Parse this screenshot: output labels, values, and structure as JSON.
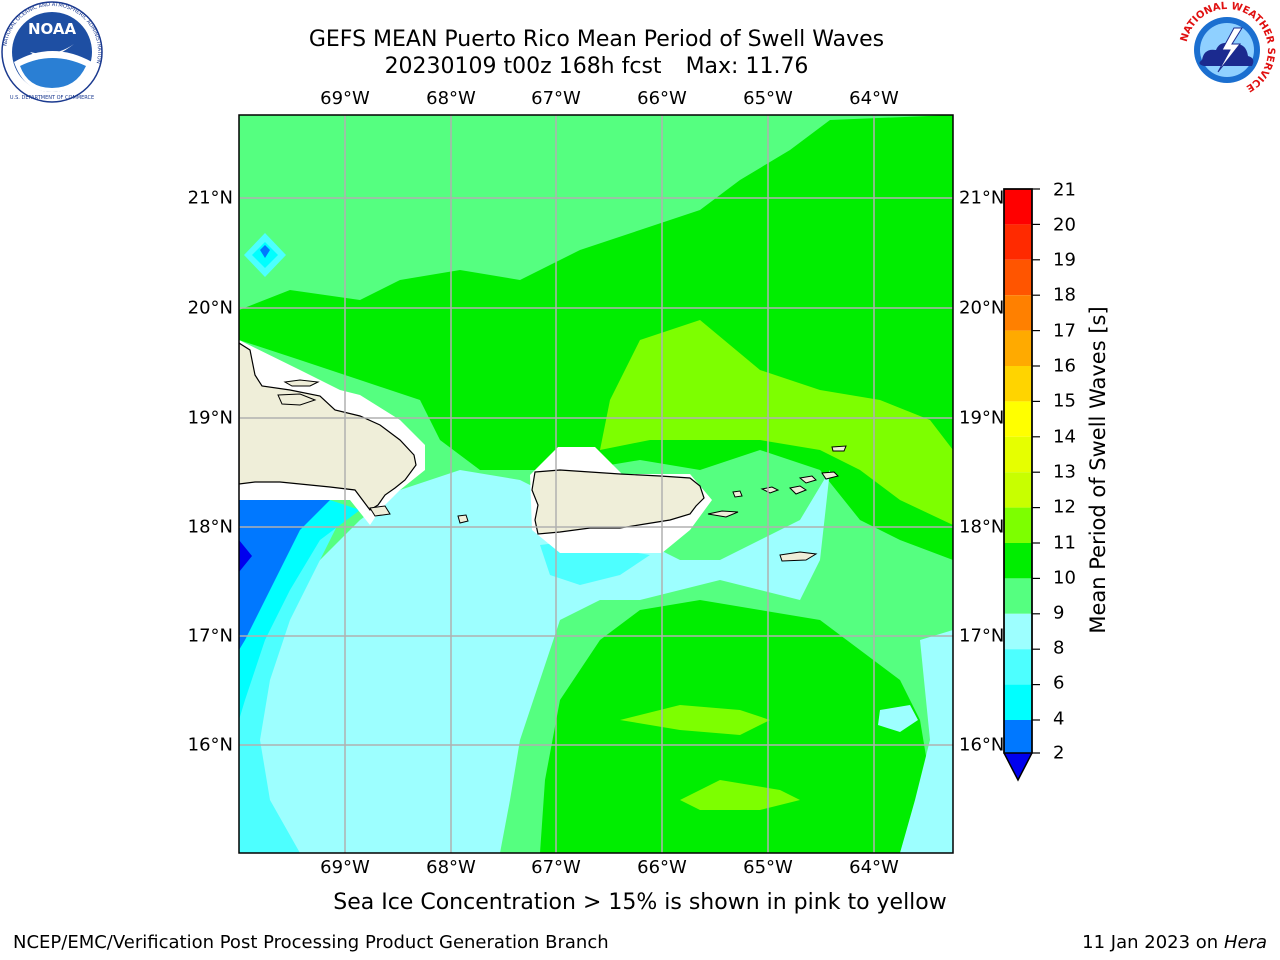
{
  "header": {
    "title_line1": "GEFS MEAN Puerto Rico Mean Period of Swell Waves",
    "title_date": "20230109 t00z 168h fcst",
    "title_max": "Max: 11.76"
  },
  "logos": {
    "noaa_text": "NOAA",
    "noaa_ring_text": "NATIONAL OCEANIC AND ATMOSPHERIC ADMINISTRATION",
    "noaa_bottom_text": "U.S. DEPARTMENT OF COMMERCE",
    "nws_ring_text": "NATIONAL WEATHER SERVICE"
  },
  "map": {
    "lon_labels": [
      "69°W",
      "68°W",
      "67°W",
      "66°W",
      "65°W",
      "64°W"
    ],
    "lat_labels": [
      "21°N",
      "20°N",
      "19°N",
      "18°N",
      "17°N",
      "16°N"
    ],
    "ocean_color": "#55ff80",
    "land_color": "#efeed9",
    "grid_color": "#b0b0b0"
  },
  "colorbar": {
    "title": "Mean Period of Swell Waves [s]",
    "ticks": [
      "21",
      "20",
      "19",
      "18",
      "17",
      "16",
      "15",
      "14",
      "13",
      "12",
      "11",
      "10",
      "9",
      "8",
      "6",
      "4",
      "2"
    ],
    "colors": [
      "#ff0000",
      "#ff2a00",
      "#ff5500",
      "#ff8000",
      "#ffaa00",
      "#ffd400",
      "#ffff00",
      "#e6ff00",
      "#c8ff00",
      "#7dff00",
      "#00ee00",
      "#55ff80",
      "#9dffff",
      "#4dffff",
      "#00ffff",
      "#0078ff",
      "#0000ee"
    ]
  },
  "footer": {
    "ice_note": "Sea Ice Concentration > 15% is shown in pink to yellow",
    "credit": "NCEP/EMC/Verification Post Processing Product Generation Branch",
    "date_prefix": "11 Jan 2023 on",
    "date_system": "Hera"
  }
}
